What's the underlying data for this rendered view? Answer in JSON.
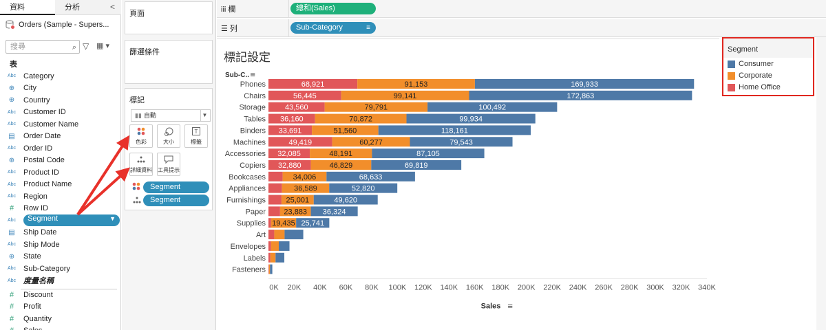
{
  "data_pane": {
    "tab_data": "資料",
    "tab_analysis": "分析",
    "collapse": "<",
    "datasource": "Orders (Sample - Supers...",
    "search_placeholder": "搜尋",
    "tables_heading": "表",
    "fields": [
      {
        "type": "Abc",
        "name": "Category"
      },
      {
        "type": "globe",
        "name": "City"
      },
      {
        "type": "globe",
        "name": "Country"
      },
      {
        "type": "Abc",
        "name": "Customer ID"
      },
      {
        "type": "Abc",
        "name": "Customer Name"
      },
      {
        "type": "date",
        "name": "Order Date"
      },
      {
        "type": "Abc",
        "name": "Order ID"
      },
      {
        "type": "globe",
        "name": "Postal Code"
      },
      {
        "type": "Abc",
        "name": "Product ID"
      },
      {
        "type": "Abc",
        "name": "Product Name"
      },
      {
        "type": "Abc",
        "name": "Region"
      },
      {
        "type": "#",
        "name": "Row ID"
      },
      {
        "type": "Abc",
        "name": "Segment"
      },
      {
        "type": "date",
        "name": "Ship Date"
      },
      {
        "type": "Abc",
        "name": "Ship Mode"
      },
      {
        "type": "globe",
        "name": "State"
      },
      {
        "type": "Abc",
        "name": "Sub-Category"
      },
      {
        "type": "Abc",
        "name": "度量名稱"
      }
    ],
    "measures": [
      {
        "type": "#",
        "name": "Discount"
      },
      {
        "type": "#",
        "name": "Profit"
      },
      {
        "type": "#",
        "name": "Quantity"
      },
      {
        "type": "#",
        "name": "Sales"
      }
    ]
  },
  "cards": {
    "pages": "頁面",
    "filters": "篩選條件",
    "marks": "標記",
    "mark_type": "自動",
    "buttons": {
      "color": "色彩",
      "size": "大小",
      "label": "標籤",
      "detail": "詳細資料",
      "tooltip": "工具提示"
    },
    "pill_color": "Segment",
    "pill_detail": "Segment"
  },
  "shelves": {
    "columns_label": "欄",
    "columns_pill": "總和(Sales)",
    "rows_label": "列",
    "rows_pill": "Sub-Category"
  },
  "view": {
    "title": "標記設定"
  },
  "legend": {
    "title": "Segment",
    "items": [
      {
        "name": "Consumer",
        "color": "#4e79a7"
      },
      {
        "name": "Corporate",
        "color": "#f28e2b"
      },
      {
        "name": "Home Office",
        "color": "#e15759"
      }
    ]
  },
  "chart_data": {
    "type": "bar",
    "orientation": "horizontal",
    "stacked": true,
    "row_header": "Sub-C..",
    "xlabel": "Sales",
    "xlim": [
      0,
      340000
    ],
    "xticks": [
      "0K",
      "20K",
      "40K",
      "60K",
      "80K",
      "100K",
      "120K",
      "140K",
      "160K",
      "180K",
      "200K",
      "220K",
      "240K",
      "260K",
      "280K",
      "300K",
      "320K",
      "340K"
    ],
    "categories": [
      "Phones",
      "Chairs",
      "Storage",
      "Tables",
      "Binders",
      "Machines",
      "Accessories",
      "Copiers",
      "Bookcases",
      "Appliances",
      "Furnishings",
      "Paper",
      "Supplies",
      "Art",
      "Envelopes",
      "Labels",
      "Fasteners"
    ],
    "series": [
      {
        "name": "Home Office",
        "color": "#e15759",
        "values": [
          68921,
          56445,
          43560,
          36160,
          33691,
          49419,
          32085,
          32880,
          11000,
          10500,
          10100,
          9000,
          2000,
          4500,
          2000,
          1500,
          400
        ],
        "labels": [
          "68,921",
          "56,445",
          "43,560",
          "36,160",
          "33,691",
          "49,419",
          "32,085",
          "32,880",
          "",
          "",
          "",
          "",
          "",
          "",
          "",
          "",
          ""
        ]
      },
      {
        "name": "Corporate",
        "color": "#f28e2b",
        "values": [
          91153,
          99141,
          79791,
          70872,
          51560,
          60277,
          48191,
          46829,
          34006,
          36589,
          25001,
          23883,
          19435,
          8000,
          6000,
          4000,
          800
        ],
        "labels": [
          "91,153",
          "99,141",
          "79,791",
          "70,872",
          "51,560",
          "60,277",
          "48,191",
          "46,829",
          "34,006",
          "36,589",
          "25,001",
          "23,883",
          "19,435",
          "",
          "",
          "",
          ""
        ]
      },
      {
        "name": "Consumer",
        "color": "#4e79a7",
        "values": [
          169933,
          172863,
          100492,
          99934,
          118161,
          79543,
          87105,
          69819,
          68633,
          52820,
          49620,
          36324,
          25741,
          14500,
          8300,
          6800,
          1800
        ],
        "labels": [
          "169,933",
          "172,863",
          "100,492",
          "99,934",
          "118,161",
          "79,543",
          "87,105",
          "69,819",
          "68,633",
          "52,820",
          "49,620",
          "36,324",
          "25,741",
          "",
          "",
          "",
          ""
        ]
      }
    ]
  }
}
